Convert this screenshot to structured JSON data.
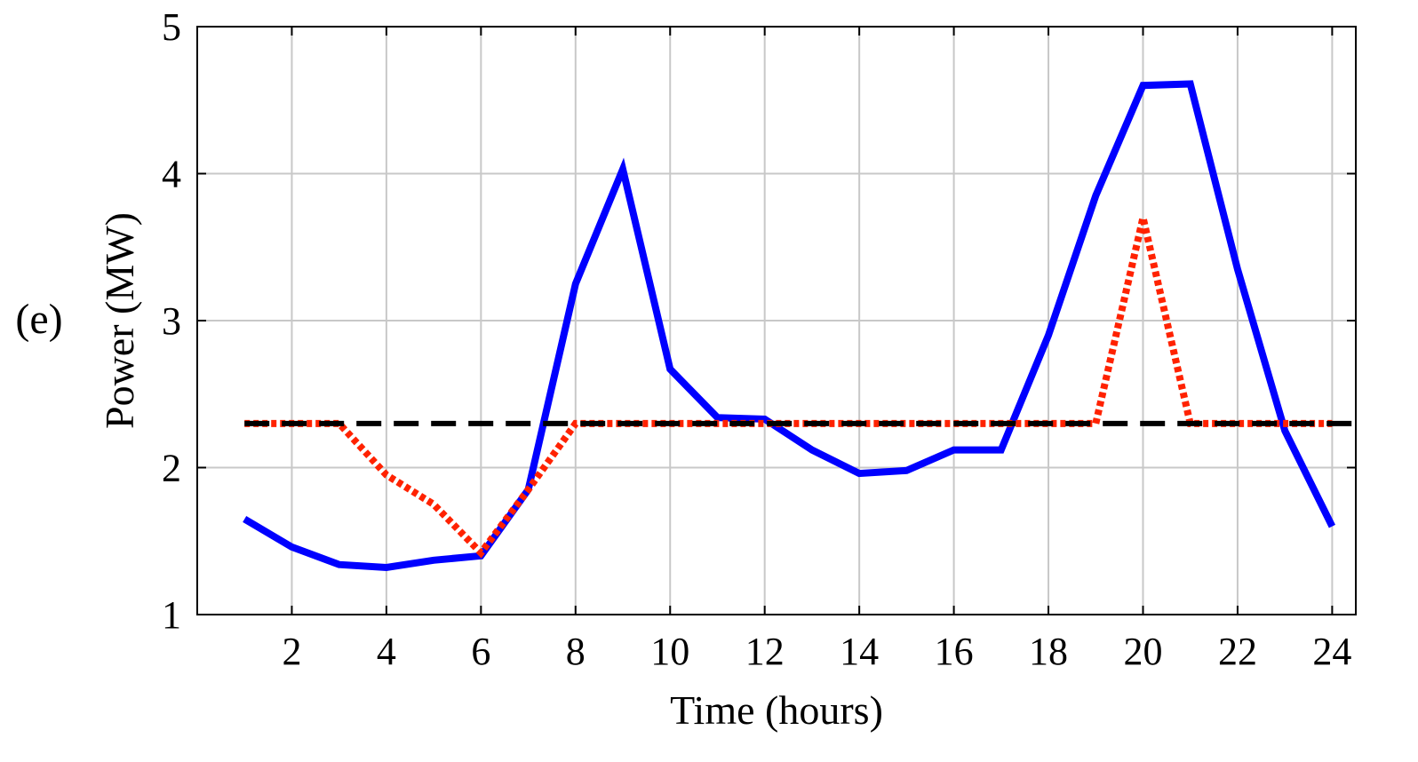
{
  "panel_label": "(e)",
  "chart_data": {
    "type": "line",
    "title": "",
    "xlabel": "Time (hours)",
    "ylabel": "Power (MW)",
    "xlim": [
      0,
      24.5
    ],
    "ylim": [
      1,
      5
    ],
    "xticks": [
      2,
      4,
      6,
      8,
      10,
      12,
      14,
      16,
      18,
      20,
      22,
      24
    ],
    "yticks": [
      1,
      2,
      3,
      4,
      5
    ],
    "grid": true,
    "x": [
      1,
      2,
      3,
      4,
      5,
      6,
      7,
      8,
      9,
      10,
      11,
      12,
      13,
      14,
      15,
      16,
      17,
      18,
      19,
      20,
      21,
      22,
      23,
      24
    ],
    "series": [
      {
        "color": "#0000ff",
        "style": "solid",
        "values": [
          1.65,
          1.46,
          1.34,
          1.32,
          1.37,
          1.4,
          1.85,
          3.25,
          4.03,
          2.67,
          2.34,
          2.33,
          2.12,
          1.96,
          1.98,
          2.12,
          2.12,
          2.9,
          3.85,
          4.6,
          4.61,
          3.35,
          2.25,
          1.6
        ]
      },
      {
        "color": "#ff2200",
        "style": "dotted",
        "values": [
          2.3,
          2.3,
          2.3,
          1.95,
          1.75,
          1.42,
          1.85,
          2.3,
          2.3,
          2.3,
          2.3,
          2.3,
          2.3,
          2.3,
          2.3,
          2.3,
          2.3,
          2.3,
          2.3,
          3.7,
          2.3,
          2.3,
          2.3,
          2.3
        ]
      },
      {
        "color": "#000000",
        "style": "dashed",
        "x": [
          1,
          24.5
        ],
        "values": [
          2.3,
          2.3
        ]
      }
    ]
  }
}
